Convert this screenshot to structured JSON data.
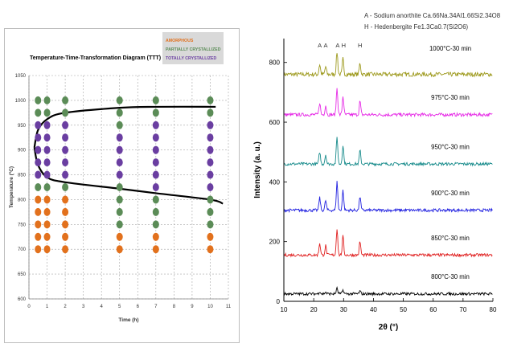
{
  "colors": {
    "amorphous": "#e2711d",
    "partially": "#5b8c57",
    "totally": "#6a3ea1",
    "legend_bg": "#d9d9d9",
    "curve": "#000000",
    "xrd_1000": "#9e9a1e",
    "xrd_975": "#e62ae6",
    "xrd_950": "#178b8b",
    "xrd_900": "#1f1fe0",
    "xrd_850": "#e01f1f",
    "xrd_800": "#000000"
  },
  "chart_data": [
    {
      "type": "scatter",
      "title": "Temperature-Time-Transformation Diagram (TTT)",
      "xlabel": "Time (h)",
      "ylabel": "Temperature (ºC)",
      "xlim": [
        0,
        11
      ],
      "ylim": [
        600,
        1050
      ],
      "xticks": [
        0,
        1,
        2,
        3,
        4,
        5,
        6,
        7,
        8,
        9,
        10,
        11
      ],
      "yticks": [
        600,
        650,
        700,
        750,
        800,
        850,
        900,
        950,
        1000,
        1050
      ],
      "grid": true,
      "legend": {
        "placement": "top-right",
        "entries": [
          "AMORPHOUS",
          "PARTIALLY CRYSTALLIZED",
          "TOTALLY CRYSTALLIZED"
        ]
      },
      "series": [
        {
          "name": "AMORPHOUS",
          "points": [
            [
              0.5,
              700
            ],
            [
              0.5,
              725
            ],
            [
              0.5,
              750
            ],
            [
              0.5,
              775
            ],
            [
              0.5,
              800
            ],
            [
              1,
              700
            ],
            [
              1,
              725
            ],
            [
              1,
              750
            ],
            [
              1,
              775
            ],
            [
              1,
              800
            ],
            [
              2,
              700
            ],
            [
              2,
              725
            ],
            [
              2,
              750
            ],
            [
              2,
              775
            ],
            [
              2,
              800
            ],
            [
              5,
              700
            ],
            [
              5,
              725
            ],
            [
              7,
              700
            ],
            [
              7,
              725
            ],
            [
              10,
              700
            ],
            [
              10,
              725
            ]
          ]
        },
        {
          "name": "PARTIALLY CRYSTALLIZED",
          "points": [
            [
              0.5,
              1000
            ],
            [
              0.5,
              975
            ],
            [
              0.5,
              825
            ],
            [
              1,
              1000
            ],
            [
              1,
              975
            ],
            [
              1,
              825
            ],
            [
              2,
              1000
            ],
            [
              2,
              975
            ],
            [
              2,
              825
            ],
            [
              5,
              1000
            ],
            [
              5,
              975
            ],
            [
              5,
              950
            ],
            [
              5,
              825
            ],
            [
              5,
              800
            ],
            [
              5,
              775
            ],
            [
              5,
              750
            ],
            [
              7,
              1000
            ],
            [
              7,
              975
            ],
            [
              7,
              800
            ],
            [
              7,
              775
            ],
            [
              7,
              750
            ],
            [
              10,
              1000
            ],
            [
              10,
              975
            ],
            [
              10,
              800
            ],
            [
              10,
              775
            ],
            [
              10,
              750
            ]
          ]
        },
        {
          "name": "TOTALLY CRYSTALLIZED",
          "points": [
            [
              0.5,
              950
            ],
            [
              0.5,
              925
            ],
            [
              0.5,
              900
            ],
            [
              0.5,
              875
            ],
            [
              0.5,
              850
            ],
            [
              1,
              950
            ],
            [
              1,
              925
            ],
            [
              1,
              900
            ],
            [
              1,
              875
            ],
            [
              1,
              850
            ],
            [
              2,
              950
            ],
            [
              2,
              925
            ],
            [
              2,
              900
            ],
            [
              2,
              875
            ],
            [
              2,
              850
            ],
            [
              5,
              925
            ],
            [
              5,
              900
            ],
            [
              5,
              875
            ],
            [
              5,
              850
            ],
            [
              7,
              950
            ],
            [
              7,
              925
            ],
            [
              7,
              900
            ],
            [
              7,
              875
            ],
            [
              7,
              850
            ],
            [
              7,
              825
            ],
            [
              10,
              950
            ],
            [
              10,
              925
            ],
            [
              10,
              900
            ],
            [
              10,
              875
            ],
            [
              10,
              850
            ],
            [
              10,
              825
            ]
          ]
        }
      ],
      "curves": [
        {
          "points": [
            [
              0.3,
              905
            ],
            [
              0.5,
              940
            ],
            [
              1,
              962
            ],
            [
              2,
              975
            ],
            [
              5,
              985
            ],
            [
              7,
              987
            ],
            [
              10.3,
              987
            ]
          ]
        },
        {
          "points": [
            [
              0.3,
              905
            ],
            [
              0.5,
              870
            ],
            [
              1,
              845
            ],
            [
              2,
              835
            ],
            [
              5,
              822
            ],
            [
              7,
              813
            ],
            [
              10,
              800
            ],
            [
              10.7,
              792
            ]
          ]
        }
      ]
    },
    {
      "type": "line",
      "title": "",
      "xlabel": "2θ (°)",
      "ylabel": "Intensity (a. u.)",
      "xlim": [
        10,
        80
      ],
      "ylim": [
        0,
        880
      ],
      "xticks": [
        10,
        20,
        30,
        40,
        50,
        60,
        70,
        80
      ],
      "yticks": [
        0,
        200,
        400,
        600,
        800
      ],
      "grid": false,
      "legend_text": [
        "A - Sodium anorthite Ca.66Na.34Al1.66Si2.34O8",
        "H - Hedenbergite Fe1.3Ca0.7(Si2O6)"
      ],
      "peak_labels": [
        {
          "text": "A",
          "x": 22
        },
        {
          "text": "A",
          "x": 24
        },
        {
          "text": "A",
          "x": 28
        },
        {
          "text": "H",
          "x": 30
        },
        {
          "text": "H",
          "x": 35.5
        }
      ],
      "peaks": [
        {
          "x": 22,
          "h": 0.45,
          "w": 0.35
        },
        {
          "x": 24,
          "h": 0.35,
          "w": 0.35
        },
        {
          "x": 27.8,
          "h": 1.0,
          "w": 0.35
        },
        {
          "x": 29.8,
          "h": 0.7,
          "w": 0.35
        },
        {
          "x": 35.5,
          "h": 0.5,
          "w": 0.35
        }
      ],
      "series": [
        {
          "name": "1000°C-30 min",
          "baseline": 760,
          "peak_scale": 75,
          "noise": 14
        },
        {
          "name": "975°C-30 min",
          "baseline": 625,
          "peak_scale": 90,
          "noise": 11
        },
        {
          "name": "950°C-30 min",
          "baseline": 460,
          "peak_scale": 90,
          "noise": 10
        },
        {
          "name": "900°C-30 min",
          "baseline": 305,
          "peak_scale": 95,
          "noise": 10
        },
        {
          "name": "850°C-30 min",
          "baseline": 155,
          "peak_scale": 90,
          "noise": 10
        },
        {
          "name": "800°C-30 min",
          "baseline": 25,
          "peak_scale": 18,
          "noise": 9
        }
      ]
    }
  ]
}
